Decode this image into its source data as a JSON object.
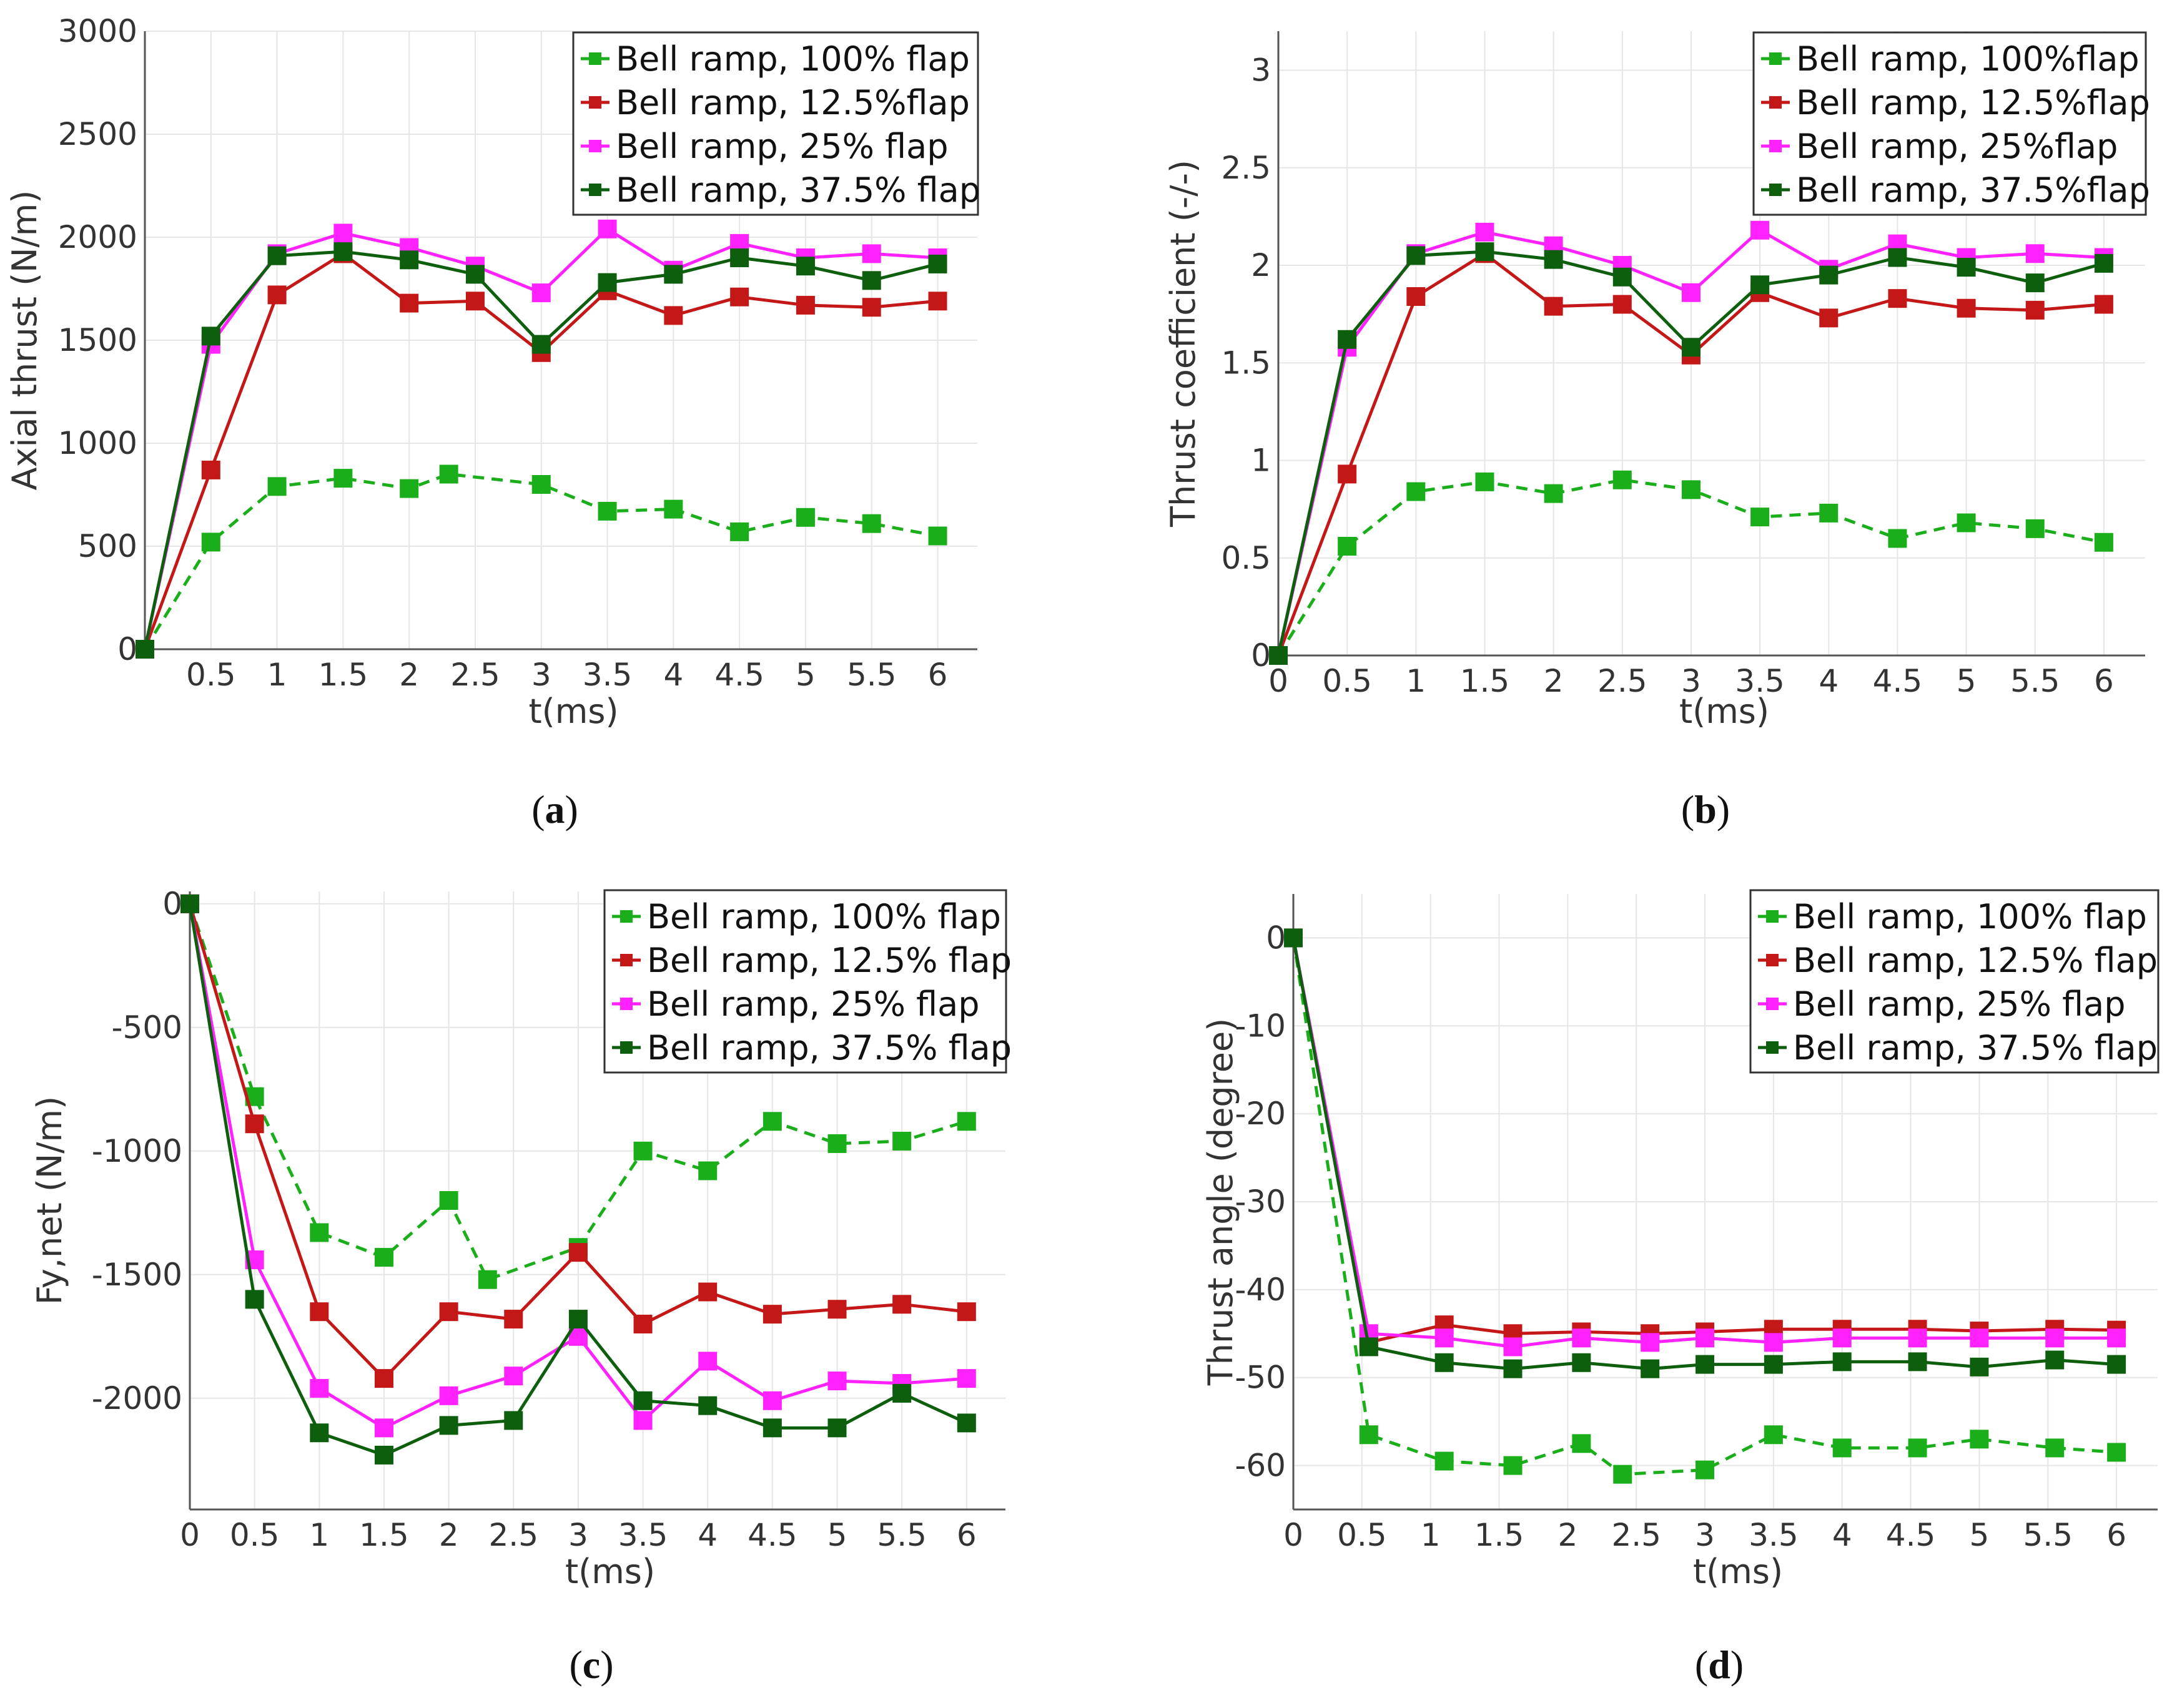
{
  "chart_data": [
    {
      "id": "a",
      "type": "line",
      "caption": "a",
      "xlabel": "t(ms)",
      "ylabel": "Axial thrust (N/m)",
      "xlim": [
        0,
        6.3
      ],
      "ylim": [
        0,
        3000
      ],
      "xticks": [
        {
          "v": 0.5,
          "label": "0.5"
        },
        {
          "v": 1,
          "label": "1"
        },
        {
          "v": 1.5,
          "label": "1.5"
        },
        {
          "v": 2,
          "label": "2"
        },
        {
          "v": 2.5,
          "label": "2.5"
        },
        {
          "v": 3,
          "label": "3"
        },
        {
          "v": 3.5,
          "label": "3.5"
        },
        {
          "v": 4,
          "label": "4"
        },
        {
          "v": 4.5,
          "label": "4.5"
        },
        {
          "v": 5,
          "label": "5"
        },
        {
          "v": 5.5,
          "label": "5.5"
        },
        {
          "v": 6,
          "label": "6"
        }
      ],
      "yticks": [
        {
          "v": 0,
          "label": "0"
        },
        {
          "v": 500,
          "label": "500"
        },
        {
          "v": 1000,
          "label": "1000"
        },
        {
          "v": 1500,
          "label": "1500"
        },
        {
          "v": 2000,
          "label": "2000"
        },
        {
          "v": 2500,
          "label": "2500"
        },
        {
          "v": 3000,
          "label": "3000"
        }
      ],
      "legend_position": "top-right",
      "series": [
        {
          "name": "Bell ramp, 100% flap",
          "color": "#1aae1a",
          "dashed": true,
          "x": [
            0,
            0.5,
            1,
            1.5,
            2,
            2.3,
            3,
            3.5,
            4,
            4.5,
            5,
            5.5,
            6
          ],
          "y": [
            0,
            520,
            790,
            830,
            780,
            850,
            800,
            670,
            680,
            570,
            640,
            610,
            550
          ]
        },
        {
          "name": "Bell ramp, 12.5%flap",
          "color": "#c41818",
          "dashed": false,
          "x": [
            0,
            0.5,
            1,
            1.5,
            2,
            2.5,
            3,
            3.5,
            4,
            4.5,
            5,
            5.5,
            6
          ],
          "y": [
            0,
            870,
            1720,
            1920,
            1680,
            1690,
            1440,
            1740,
            1620,
            1710,
            1670,
            1660,
            1690
          ]
        },
        {
          "name": "Bell ramp, 25% flap",
          "color": "#ff22ff",
          "dashed": false,
          "x": [
            0,
            0.5,
            1,
            1.5,
            2,
            2.5,
            3,
            3.5,
            4,
            4.5,
            5,
            5.5,
            6
          ],
          "y": [
            0,
            1480,
            1920,
            2020,
            1950,
            1860,
            1730,
            2040,
            1840,
            1970,
            1900,
            1920,
            1900
          ]
        },
        {
          "name": "Bell ramp, 37.5% flap",
          "color": "#0d5e0d",
          "dashed": false,
          "x": [
            0,
            0.5,
            1,
            1.5,
            2,
            2.5,
            3,
            3.5,
            4,
            4.5,
            5,
            5.5,
            6
          ],
          "y": [
            0,
            1520,
            1910,
            1930,
            1890,
            1820,
            1480,
            1780,
            1820,
            1900,
            1860,
            1790,
            1870
          ]
        }
      ]
    },
    {
      "id": "b",
      "type": "line",
      "caption": "b",
      "xlabel": "t(ms)",
      "ylabel": "Thrust coefficient (-/-)",
      "xlim": [
        0,
        6.3
      ],
      "ylim": [
        0,
        3.2
      ],
      "xticks": [
        {
          "v": 0,
          "label": "0"
        },
        {
          "v": 0.5,
          "label": "0.5"
        },
        {
          "v": 1,
          "label": "1"
        },
        {
          "v": 1.5,
          "label": "1.5"
        },
        {
          "v": 2,
          "label": "2"
        },
        {
          "v": 2.5,
          "label": "2.5"
        },
        {
          "v": 3,
          "label": "3"
        },
        {
          "v": 3.5,
          "label": "3.5"
        },
        {
          "v": 4,
          "label": "4"
        },
        {
          "v": 4.5,
          "label": "4.5"
        },
        {
          "v": 5,
          "label": "5"
        },
        {
          "v": 5.5,
          "label": "5.5"
        },
        {
          "v": 6,
          "label": "6"
        }
      ],
      "yticks": [
        {
          "v": 0,
          "label": "0"
        },
        {
          "v": 0.5,
          "label": "0.5"
        },
        {
          "v": 1,
          "label": "1"
        },
        {
          "v": 1.5,
          "label": "1.5"
        },
        {
          "v": 2,
          "label": "2"
        },
        {
          "v": 2.5,
          "label": "2.5"
        },
        {
          "v": 3,
          "label": "3"
        }
      ],
      "legend_position": "top-right",
      "series": [
        {
          "name": "Bell ramp, 100%flap",
          "color": "#1aae1a",
          "dashed": true,
          "x": [
            0,
            0.5,
            1,
            1.5,
            2,
            2.5,
            3,
            3.5,
            4,
            4.5,
            5,
            5.5,
            6
          ],
          "y": [
            0,
            0.56,
            0.84,
            0.89,
            0.83,
            0.9,
            0.85,
            0.71,
            0.73,
            0.6,
            0.68,
            0.65,
            0.58
          ]
        },
        {
          "name": "Bell ramp, 12.5%flap",
          "color": "#c41818",
          "dashed": false,
          "x": [
            0,
            0.5,
            1,
            1.5,
            2,
            2.5,
            3,
            3.5,
            4,
            4.5,
            5,
            5.5,
            6
          ],
          "y": [
            0,
            0.93,
            1.84,
            2.06,
            1.79,
            1.8,
            1.54,
            1.86,
            1.73,
            1.83,
            1.78,
            1.77,
            1.8
          ]
        },
        {
          "name": "Bell ramp, 25%flap",
          "color": "#ff22ff",
          "dashed": false,
          "x": [
            0,
            0.5,
            1,
            1.5,
            2,
            2.5,
            3,
            3.5,
            4,
            4.5,
            5,
            5.5,
            6
          ],
          "y": [
            0,
            1.58,
            2.06,
            2.17,
            2.1,
            2.0,
            1.86,
            2.18,
            1.98,
            2.11,
            2.04,
            2.06,
            2.04
          ]
        },
        {
          "name": "Bell ramp, 37.5%flap",
          "color": "#0d5e0d",
          "dashed": false,
          "x": [
            0,
            0.5,
            1,
            1.5,
            2,
            2.5,
            3,
            3.5,
            4,
            4.5,
            5,
            5.5,
            6
          ],
          "y": [
            0,
            1.62,
            2.05,
            2.07,
            2.03,
            1.94,
            1.58,
            1.9,
            1.95,
            2.04,
            1.99,
            1.91,
            2.01
          ]
        }
      ]
    },
    {
      "id": "c",
      "type": "line",
      "caption": "c",
      "xlabel": "t(ms)",
      "ylabel": "Fy,net (N/m)",
      "xlim": [
        0,
        6.3
      ],
      "ylim": [
        -2450,
        50
      ],
      "xticks": [
        {
          "v": 0,
          "label": "0"
        },
        {
          "v": 0.5,
          "label": "0.5"
        },
        {
          "v": 1,
          "label": "1"
        },
        {
          "v": 1.5,
          "label": "1.5"
        },
        {
          "v": 2,
          "label": "2"
        },
        {
          "v": 2.5,
          "label": "2.5"
        },
        {
          "v": 3,
          "label": "3"
        },
        {
          "v": 3.5,
          "label": "3.5"
        },
        {
          "v": 4,
          "label": "4"
        },
        {
          "v": 4.5,
          "label": "4.5"
        },
        {
          "v": 5,
          "label": "5"
        },
        {
          "v": 5.5,
          "label": "5.5"
        },
        {
          "v": 6,
          "label": "6"
        }
      ],
      "yticks": [
        {
          "v": 0,
          "label": "0"
        },
        {
          "v": -500,
          "label": "-500"
        },
        {
          "v": -1000,
          "label": "-1000"
        },
        {
          "v": -1500,
          "label": "-1500"
        },
        {
          "v": -2000,
          "label": "-2000"
        }
      ],
      "legend_position": "top-right",
      "series": [
        {
          "name": "Bell ramp, 100% flap",
          "color": "#1aae1a",
          "dashed": true,
          "x": [
            0,
            0.5,
            1,
            1.5,
            2,
            2.3,
            3,
            3.5,
            4,
            4.5,
            5,
            5.5,
            6
          ],
          "y": [
            0,
            -780,
            -1330,
            -1430,
            -1200,
            -1520,
            -1390,
            -1000,
            -1080,
            -880,
            -970,
            -960,
            -880
          ]
        },
        {
          "name": "Bell ramp, 12.5% flap",
          "color": "#c41818",
          "dashed": false,
          "x": [
            0,
            0.5,
            1,
            1.5,
            2,
            2.5,
            3,
            3.5,
            4,
            4.5,
            5,
            5.5,
            6
          ],
          "y": [
            0,
            -890,
            -1650,
            -1920,
            -1650,
            -1680,
            -1410,
            -1700,
            -1570,
            -1660,
            -1640,
            -1620,
            -1650
          ]
        },
        {
          "name": "Bell ramp, 25% flap",
          "color": "#ff22ff",
          "dashed": false,
          "x": [
            0,
            0.5,
            1,
            1.5,
            2,
            2.5,
            3,
            3.5,
            4,
            4.5,
            5,
            5.5,
            6
          ],
          "y": [
            0,
            -1440,
            -1960,
            -2120,
            -1990,
            -1910,
            -1750,
            -2090,
            -1850,
            -2010,
            -1930,
            -1940,
            -1920
          ]
        },
        {
          "name": "Bell ramp, 37.5% flap",
          "color": "#0d5e0d",
          "dashed": false,
          "x": [
            0,
            0.5,
            1,
            1.5,
            2,
            2.5,
            3,
            3.5,
            4,
            4.5,
            5,
            5.5,
            6
          ],
          "y": [
            0,
            -1600,
            -2140,
            -2230,
            -2110,
            -2090,
            -1680,
            -2010,
            -2030,
            -2120,
            -2120,
            -1980,
            -2100
          ]
        }
      ]
    },
    {
      "id": "d",
      "type": "line",
      "caption": "d",
      "xlabel": "t(ms)",
      "ylabel": "Thrust angle (degree)",
      "xlim": [
        0,
        6.3
      ],
      "ylim": [
        -65,
        5
      ],
      "xticks": [
        {
          "v": 0,
          "label": "0"
        },
        {
          "v": 0.5,
          "label": "0.5"
        },
        {
          "v": 1,
          "label": "1"
        },
        {
          "v": 1.5,
          "label": "1.5"
        },
        {
          "v": 2,
          "label": "2"
        },
        {
          "v": 2.5,
          "label": "2.5"
        },
        {
          "v": 3,
          "label": "3"
        },
        {
          "v": 3.5,
          "label": "3.5"
        },
        {
          "v": 4,
          "label": "4"
        },
        {
          "v": 4.5,
          "label": "4.5"
        },
        {
          "v": 5,
          "label": "5"
        },
        {
          "v": 5.5,
          "label": "5.5"
        },
        {
          "v": 6,
          "label": "6"
        }
      ],
      "yticks": [
        {
          "v": 0,
          "label": "0"
        },
        {
          "v": -10,
          "label": "-10"
        },
        {
          "v": -20,
          "label": "-20"
        },
        {
          "v": -30,
          "label": "-30"
        },
        {
          "v": -40,
          "label": "-40"
        },
        {
          "v": -50,
          "label": "-50"
        },
        {
          "v": -60,
          "label": "-60"
        }
      ],
      "legend_position": "top-right",
      "series": [
        {
          "name": "Bell ramp, 100% flap",
          "color": "#1aae1a",
          "dashed": true,
          "x": [
            0,
            0.55,
            1.1,
            1.6,
            2.1,
            2.4,
            3,
            3.5,
            4,
            4.55,
            5,
            5.55,
            6
          ],
          "y": [
            0,
            -56.5,
            -59.5,
            -60,
            -57.5,
            -61,
            -60.5,
            -56.5,
            -58,
            -58,
            -57,
            -58,
            -58.5
          ]
        },
        {
          "name": "Bell ramp, 12.5% flap",
          "color": "#c41818",
          "dashed": false,
          "x": [
            0,
            0.55,
            1.1,
            1.6,
            2.1,
            2.6,
            3,
            3.5,
            4,
            4.55,
            5,
            5.55,
            6
          ],
          "y": [
            0,
            -46,
            -44,
            -45,
            -44.8,
            -45,
            -44.8,
            -44.5,
            -44.5,
            -44.5,
            -44.7,
            -44.5,
            -44.6
          ]
        },
        {
          "name": "Bell ramp, 25% flap",
          "color": "#ff22ff",
          "dashed": false,
          "x": [
            0,
            0.55,
            1.1,
            1.6,
            2.1,
            2.6,
            3,
            3.5,
            4,
            4.55,
            5,
            5.55,
            6
          ],
          "y": [
            0,
            -45,
            -45.5,
            -46.5,
            -45.5,
            -46,
            -45.5,
            -46,
            -45.5,
            -45.5,
            -45.5,
            -45.5,
            -45.5
          ]
        },
        {
          "name": "Bell ramp, 37.5% flap",
          "color": "#0d5e0d",
          "dashed": false,
          "x": [
            0,
            0.55,
            1.1,
            1.6,
            2.1,
            2.6,
            3,
            3.5,
            4,
            4.55,
            5,
            5.55,
            6
          ],
          "y": [
            0,
            -46.5,
            -48.3,
            -49,
            -48.3,
            -49,
            -48.5,
            -48.5,
            -48.2,
            -48.2,
            -48.8,
            -48,
            -48.5
          ]
        }
      ]
    }
  ]
}
